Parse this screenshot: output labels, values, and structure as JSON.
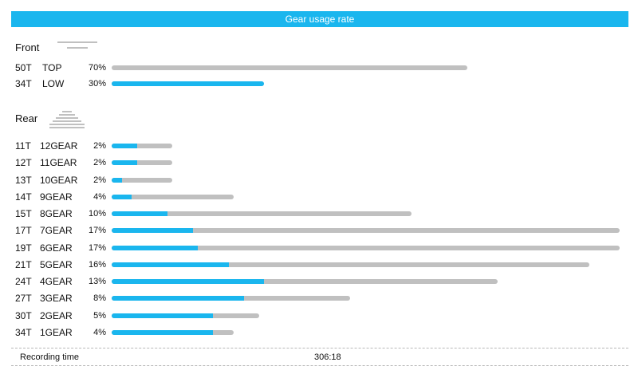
{
  "colors": {
    "accent": "#1ab6ee",
    "track": "#c0c0c0",
    "title_bg": "#1ab6ee"
  },
  "header": {
    "title": "Gear usage rate"
  },
  "footer": {
    "label": "Recording time",
    "value": "306:18"
  },
  "chart_data": [
    {
      "type": "bar",
      "orientation": "horizontal",
      "title": "Front",
      "categories": [
        "50T TOP",
        "34T LOW"
      ],
      "rows": [
        {
          "teeth": "50T",
          "name": "TOP",
          "pct_label": "70%",
          "percent": 70,
          "track_fraction": 0.7,
          "fill_fraction": 0.0
        },
        {
          "teeth": "34T",
          "name": "LOW",
          "pct_label": "30%",
          "percent": 30,
          "track_fraction": 0.3,
          "fill_fraction": 0.3
        }
      ]
    },
    {
      "type": "bar",
      "orientation": "horizontal",
      "title": "Rear",
      "categories": [
        "11T 12GEAR",
        "12T 11GEAR",
        "13T 10GEAR",
        "14T 9GEAR",
        "15T 8GEAR",
        "17T 7GEAR",
        "19T 6GEAR",
        "21T 5GEAR",
        "24T 4GEAR",
        "27T 3GEAR",
        "30T 2GEAR",
        "34T 1GEAR"
      ],
      "rows": [
        {
          "teeth": "11T",
          "name": "12GEAR",
          "pct_label": "2%",
          "percent": 2,
          "track_fraction": 0.12,
          "fill_fraction": 0.05
        },
        {
          "teeth": "12T",
          "name": "11GEAR",
          "pct_label": "2%",
          "percent": 2,
          "track_fraction": 0.12,
          "fill_fraction": 0.05
        },
        {
          "teeth": "13T",
          "name": "10GEAR",
          "pct_label": "2%",
          "percent": 2,
          "track_fraction": 0.12,
          "fill_fraction": 0.02
        },
        {
          "teeth": "14T",
          "name": "9GEAR",
          "pct_label": "4%",
          "percent": 4,
          "track_fraction": 0.24,
          "fill_fraction": 0.04
        },
        {
          "teeth": "15T",
          "name": "8GEAR",
          "pct_label": "10%",
          "percent": 10,
          "track_fraction": 0.59,
          "fill_fraction": 0.11
        },
        {
          "teeth": "17T",
          "name": "7GEAR",
          "pct_label": "17%",
          "percent": 17,
          "track_fraction": 1.0,
          "fill_fraction": 0.16
        },
        {
          "teeth": "19T",
          "name": "6GEAR",
          "pct_label": "17%",
          "percent": 17,
          "track_fraction": 1.0,
          "fill_fraction": 0.17
        },
        {
          "teeth": "21T",
          "name": "5GEAR",
          "pct_label": "16%",
          "percent": 16,
          "track_fraction": 0.94,
          "fill_fraction": 0.23
        },
        {
          "teeth": "24T",
          "name": "4GEAR",
          "pct_label": "13%",
          "percent": 13,
          "track_fraction": 0.76,
          "fill_fraction": 0.3
        },
        {
          "teeth": "27T",
          "name": "3GEAR",
          "pct_label": "8%",
          "percent": 8,
          "track_fraction": 0.47,
          "fill_fraction": 0.26
        },
        {
          "teeth": "30T",
          "name": "2GEAR",
          "pct_label": "5%",
          "percent": 5,
          "track_fraction": 0.29,
          "fill_fraction": 0.2
        },
        {
          "teeth": "34T",
          "name": "1GEAR",
          "pct_label": "4%",
          "percent": 4,
          "track_fraction": 0.24,
          "fill_fraction": 0.2
        }
      ]
    }
  ]
}
